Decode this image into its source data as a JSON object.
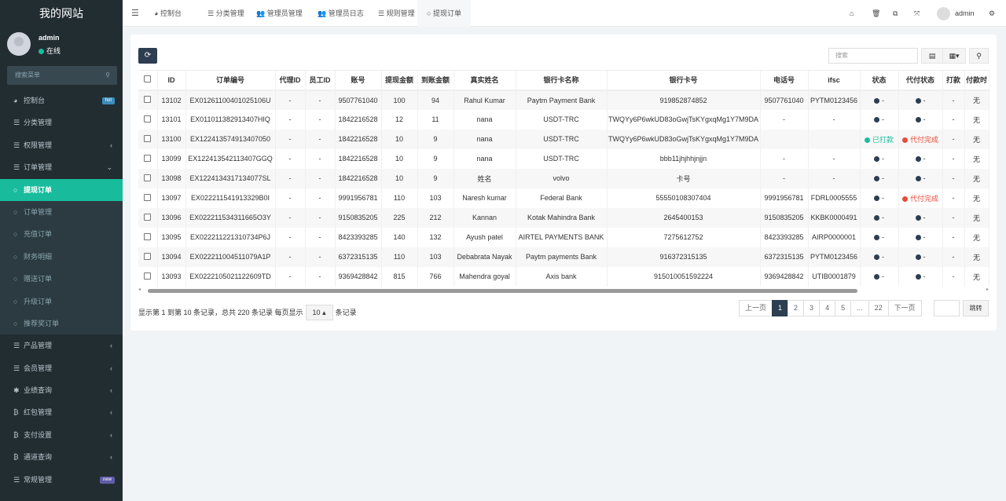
{
  "site_title": "我的网站",
  "user": {
    "name": "admin",
    "status": "在线",
    "status_color": "#18bc9c"
  },
  "sidebar": {
    "search_placeholder": "搜索菜单",
    "items": [
      {
        "label": "控制台",
        "icon": "dashboard-icon",
        "badge": "hot",
        "badge_color": "#3c8dbc"
      },
      {
        "label": "分类管理",
        "icon": "list-icon"
      },
      {
        "label": "权限管理",
        "icon": "list-icon",
        "arrow": "‹"
      },
      {
        "label": "订单管理",
        "icon": "list-icon",
        "arrow": "⌄"
      },
      {
        "label": "提现订单",
        "icon": "circle-icon",
        "sub": true,
        "active": true
      },
      {
        "label": "订单管理",
        "icon": "circle-icon",
        "sub": true
      },
      {
        "label": "充值订单",
        "icon": "circle-icon",
        "sub": true
      },
      {
        "label": "财务明细",
        "icon": "circle-icon",
        "sub": true
      },
      {
        "label": "赠送订单",
        "icon": "circle-icon",
        "sub": true
      },
      {
        "label": "升级订单",
        "icon": "circle-icon",
        "sub": true
      },
      {
        "label": "推荐奖订单",
        "icon": "circle-icon",
        "sub": true
      },
      {
        "label": "产品管理",
        "icon": "list-icon",
        "arrow": "‹"
      },
      {
        "label": "会员管理",
        "icon": "list-icon",
        "arrow": "‹"
      },
      {
        "label": "业绩查询",
        "icon": "asterisk-icon",
        "arrow": "‹"
      },
      {
        "label": "红包管理",
        "icon": "bitcoin-icon",
        "arrow": "‹"
      },
      {
        "label": "支付设置",
        "icon": "bitcoin-icon",
        "arrow": "‹"
      },
      {
        "label": "通道查询",
        "icon": "bitcoin-icon",
        "arrow": "‹"
      },
      {
        "label": "常规管理",
        "icon": "list-icon",
        "badge": "new",
        "badge_color": "#605ca8"
      }
    ]
  },
  "tabs": [
    {
      "label": "控制台",
      "icon": "dashboard-icon"
    },
    {
      "label": "分类管理",
      "icon": "list-icon"
    },
    {
      "label": "管理员管理",
      "icon": "users-icon"
    },
    {
      "label": "管理员日志",
      "icon": "users-icon"
    },
    {
      "label": "规则管理",
      "icon": "list-icon"
    },
    {
      "label": "提现订单",
      "icon": "circle-icon",
      "active": true
    }
  ],
  "header_user": "admin",
  "toolbar": {
    "search_placeholder": "搜索"
  },
  "table": {
    "columns": [
      "ID",
      "订单编号",
      "代理ID",
      "员工ID",
      "账号",
      "提现金额",
      "到账金额",
      "真实姓名",
      "银行卡名称",
      "银行卡号",
      "电话号",
      "ifsc",
      "状态",
      "代付状态",
      "打款",
      "付款时"
    ],
    "rows": [
      [
        "13102",
        "EX01261100401025106U",
        "-",
        "-",
        "9507761040",
        "100",
        "94",
        "Rahul Kumar",
        "Paytm Payment Bank",
        "919852874852",
        "9507761040",
        "PYTM0123456",
        "-",
        "-",
        "-",
        "无"
      ],
      [
        "13101",
        "EX011011382913407HIQ",
        "-",
        "-",
        "1842216528",
        "12",
        "11",
        "nana",
        "USDT-TRC",
        "TWQYy6P6wkUD83oGwjTsKYgxqMg1Y7M9DA",
        "-",
        "-",
        "-",
        "-",
        "-",
        "无"
      ],
      [
        "13100",
        "EX122413574913407050",
        "-",
        "-",
        "1842216528",
        "10",
        "9",
        "nana",
        "USDT-TRC",
        "TWQYy6P6wkUD83oGwjTsKYgxqMg1Y7M9DA",
        "",
        "",
        "已打款",
        "代付完成",
        "-",
        "无"
      ],
      [
        "13099",
        "EX122413542113407GGQ",
        "-",
        "-",
        "1842216528",
        "10",
        "9",
        "nana",
        "USDT-TRC",
        "bbb11jhjhhjnjjn",
        "-",
        "-",
        "-",
        "-",
        "-",
        "无"
      ],
      [
        "13098",
        "EX1224134317134077SL",
        "-",
        "-",
        "1842216528",
        "10",
        "9",
        "姓名",
        "volvo",
        "卡号",
        "-",
        "-",
        "-",
        "-",
        "-",
        "无"
      ],
      [
        "13097",
        "EX022211541913329B0I",
        "-",
        "-",
        "9991956781",
        "110",
        "103",
        "Naresh kumar",
        "Federal Bank",
        "55550108307404",
        "9991956781",
        "FDRL0005555",
        "-",
        "代付完成",
        "-",
        "无"
      ],
      [
        "13096",
        "EX022211534311665O3Y",
        "-",
        "-",
        "9150835205",
        "225",
        "212",
        "Kannan",
        "Kotak Mahindra Bank",
        "2645400153",
        "9150835205",
        "KKBK0000491",
        "-",
        "-",
        "-",
        "无"
      ],
      [
        "13095",
        "EX022211221310734P6J",
        "-",
        "-",
        "8423393285",
        "140",
        "132",
        "Ayush patel",
        "AIRTEL PAYMENTS BANK",
        "7275612752",
        "8423393285",
        "AIRP0000001",
        "-",
        "-",
        "-",
        "无"
      ],
      [
        "13094",
        "EX022211004511079A1P",
        "-",
        "-",
        "6372315135",
        "110",
        "103",
        "Debabrata Nayak",
        "Paytm payments Bank",
        "916372315135",
        "6372315135",
        "PYTM0123456",
        "-",
        "-",
        "-",
        "无"
      ],
      [
        "13093",
        "EX0222105021122609TD",
        "-",
        "-",
        "9369428842",
        "815",
        "766",
        "Mahendra goyal",
        "Axis bank",
        "915010051592224",
        "9369428842",
        "UTIB0001879",
        "-",
        "-",
        "-",
        "无"
      ]
    ]
  },
  "status_colors": {
    "default": "#2c3e50",
    "已打款": "#18bc9c",
    "代付完成": "#e74c3c"
  },
  "footer": {
    "summary": "显示第 1 到第 10 条记录，总共 220 条记录 每页显示",
    "page_size": "10",
    "suffix": "条记录"
  },
  "pagination": {
    "prev": "上一页",
    "pages": [
      "1",
      "2",
      "3",
      "4",
      "5",
      "...",
      "22"
    ],
    "current": "1",
    "next": "下一页",
    "jump": "跳转"
  }
}
